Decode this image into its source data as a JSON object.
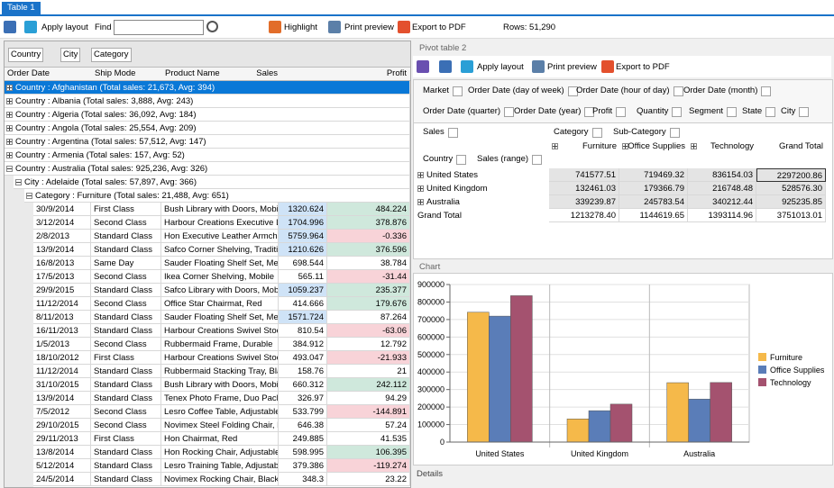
{
  "tab": "Table 1",
  "toolbar": {
    "apply_layout": "Apply layout",
    "find": "Find",
    "highlight": "Highlight",
    "print_preview": "Print preview",
    "export_pdf": "Export to PDF",
    "rows": "Rows: 51,290"
  },
  "grid": {
    "group_fields": [
      "Country",
      "City",
      "Category"
    ],
    "columns": [
      "Order Date",
      "Ship Mode",
      "Product Name",
      "Sales",
      "Profit"
    ],
    "countries": [
      "Country : Afghanistan (Total sales: 21,673, Avg: 394)",
      "Country : Albania (Total sales: 3,888, Avg: 243)",
      "Country : Algeria (Total sales: 36,092, Avg: 184)",
      "Country : Angola (Total sales: 25,554, Avg: 209)",
      "Country : Argentina (Total sales: 57,512, Avg: 147)",
      "Country : Armenia (Total sales: 157, Avg: 52)",
      "Country : Australia (Total sales: 925,236, Avg: 326)"
    ],
    "city": "City : Adelaide (Total sales: 57,897, Avg: 366)",
    "category": "Category : Furniture (Total sales: 21,488, Avg: 651)",
    "rows": [
      [
        "30/9/2014",
        "First Class",
        "Bush Library with Doors, Mobile",
        "1320.624",
        "484.224"
      ],
      [
        "3/12/2014",
        "Second Class",
        "Harbour Creations Executive Lea",
        "1704.996",
        "378.876"
      ],
      [
        "2/8/2013",
        "Standard Class",
        "Hon Executive Leather Armchair",
        "5759.964",
        "-0.336"
      ],
      [
        "13/9/2014",
        "Standard Class",
        "Safco Corner Shelving, Tradition",
        "1210.626",
        "376.596"
      ],
      [
        "16/8/2013",
        "Same Day",
        "Sauder Floating Shelf Set, Metal",
        "698.544",
        "38.784"
      ],
      [
        "17/5/2013",
        "Second Class",
        "Ikea Corner Shelving, Mobile",
        "565.11",
        "-31.44"
      ],
      [
        "29/9/2015",
        "Standard Class",
        "Safco Library with Doors, Mobile",
        "1059.237",
        "235.377"
      ],
      [
        "11/12/2014",
        "Second Class",
        "Office Star Chairmat, Red",
        "414.666",
        "179.676"
      ],
      [
        "8/11/2013",
        "Standard Class",
        "Sauder Floating Shelf Set, Metal",
        "1571.724",
        "87.264"
      ],
      [
        "16/11/2013",
        "Standard Class",
        "Harbour Creations Swivel Stool,",
        "810.54",
        "-63.06"
      ],
      [
        "1/5/2013",
        "Second Class",
        "Rubbermaid Frame, Durable",
        "384.912",
        "12.792"
      ],
      [
        "18/10/2012",
        "First Class",
        "Harbour Creations Swivel Stool,",
        "493.047",
        "-21.933"
      ],
      [
        "11/12/2014",
        "Standard Class",
        "Rubbermaid Stacking Tray, Black",
        "158.76",
        "21"
      ],
      [
        "31/10/2015",
        "Standard Class",
        "Bush Library with Doors, Mobile",
        "660.312",
        "242.112"
      ],
      [
        "13/9/2014",
        "Standard Class",
        "Tenex Photo Frame, Duo Pack",
        "326.97",
        "94.29"
      ],
      [
        "7/5/2012",
        "Second Class",
        "Lesro Coffee Table, Adjustable H",
        "533.799",
        "-144.891"
      ],
      [
        "29/10/2015",
        "Second Class",
        "Novimex Steel Folding Chair, Bla",
        "646.38",
        "57.24"
      ],
      [
        "29/11/2013",
        "First Class",
        "Hon Chairmat, Red",
        "249.885",
        "41.535"
      ],
      [
        "13/8/2014",
        "Standard Class",
        "Hon Rocking Chair, Adjustable",
        "598.995",
        "106.395"
      ],
      [
        "5/12/2014",
        "Standard Class",
        "Lesro Training Table, Adjustable",
        "379.386",
        "-119.274"
      ],
      [
        "24/5/2014",
        "Standard Class",
        "Novimex Rocking Chair, Black",
        "348.3",
        "23.22"
      ]
    ]
  },
  "pivot": {
    "title": "Pivot table 2",
    "toolbar": {
      "apply_layout": "Apply layout",
      "print_preview": "Print preview",
      "export_pdf": "Export to PDF"
    },
    "filter_fields": [
      "Market",
      "Order Date (day of week)",
      "Order Date (hour of day)",
      "Order Date (month)",
      "Order Date (quarter)",
      "Order Date (year)",
      "Profit",
      "Quantity",
      "Segment",
      "State",
      "City"
    ],
    "data_field": "Sales",
    "column_fields": [
      "Category",
      "Sub-Category"
    ],
    "row_fields": [
      "Country",
      "Sales (range)"
    ],
    "columns": [
      "Furniture",
      "Office Supplies",
      "Technology",
      "Grand Total"
    ],
    "rows": [
      {
        "label": "United States",
        "values": [
          "741577.51",
          "719469.32",
          "836154.03",
          "2297200.86"
        ]
      },
      {
        "label": "United Kingdom",
        "values": [
          "132461.03",
          "179366.79",
          "216748.48",
          "528576.30"
        ]
      },
      {
        "label": "Australia",
        "values": [
          "339239.87",
          "245783.54",
          "340212.44",
          "925235.85"
        ]
      },
      {
        "label": "Grand Total",
        "values": [
          "1213278.40",
          "1144619.65",
          "1393114.96",
          "3751013.01"
        ]
      }
    ]
  },
  "chart_label": "Chart",
  "details": "Details",
  "chart_data": {
    "type": "bar",
    "categories": [
      "United States",
      "United Kingdom",
      "Australia"
    ],
    "series": [
      {
        "name": "Furniture",
        "color": "#f5b94a",
        "values": [
          741577.51,
          132461.03,
          339239.87
        ]
      },
      {
        "name": "Office Supplies",
        "color": "#5a7db8",
        "values": [
          719469.32,
          179366.79,
          245783.54
        ]
      },
      {
        "name": "Technology",
        "color": "#a4526f",
        "values": [
          836154.03,
          216748.48,
          340212.44
        ]
      }
    ],
    "ylim": [
      0,
      900000
    ],
    "yticks": [
      0,
      100000,
      200000,
      300000,
      400000,
      500000,
      600000,
      700000,
      800000,
      900000
    ],
    "grid": true,
    "legend": "right"
  }
}
